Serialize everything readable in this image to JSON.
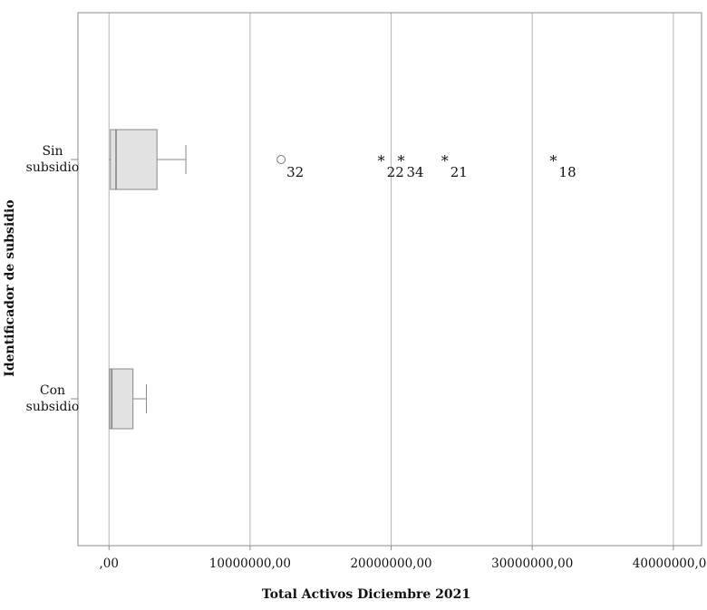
{
  "chart_data": {
    "type": "boxplot",
    "orientation": "horizontal",
    "xlabel": "Total Activos Diciembre 2021",
    "ylabel": "Identificador de subsidio",
    "xlim": [
      -2200000,
      42000000
    ],
    "x_ticks": [
      0,
      10000000,
      20000000,
      30000000,
      40000000
    ],
    "x_tick_labels": [
      ",00",
      "10000000,00",
      "20000000,00",
      "30000000,00",
      "40000000,00"
    ],
    "grid": "vertical",
    "colors": {
      "box_fill": "#e2e2e2",
      "lines": "#888888",
      "grid": "#b3b3b3"
    },
    "categories": [
      {
        "label_lines": [
          "Sin",
          "subsidio"
        ],
        "whisker_low": 0,
        "q1": 100000,
        "median": 500000,
        "q3": 3400000,
        "whisker_high": 5450000,
        "outliers": [
          {
            "value": 12200000,
            "marker": "circle",
            "label": "32"
          },
          {
            "value": 19300000,
            "marker": "star",
            "label": "22"
          },
          {
            "value": 20700000,
            "marker": "star",
            "label": "34"
          },
          {
            "value": 23800000,
            "marker": "star",
            "label": "21"
          },
          {
            "value": 31500000,
            "marker": "star",
            "label": "18"
          }
        ]
      },
      {
        "label_lines": [
          "Con",
          "subsidio"
        ],
        "whisker_low": 0,
        "q1": 50000,
        "median": 200000,
        "q3": 1700000,
        "whisker_high": 2650000,
        "outliers": []
      }
    ]
  }
}
